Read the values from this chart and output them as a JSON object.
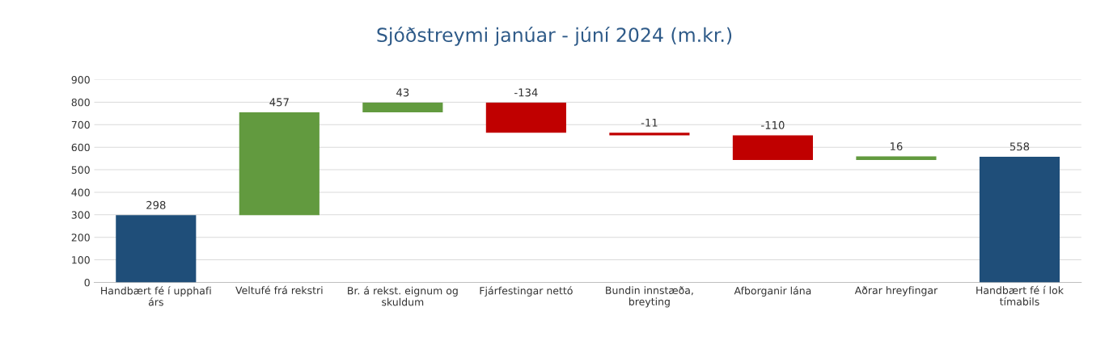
{
  "chart_data": {
    "type": "bar",
    "title": "Sjóðstreymi janúar - júní 2024 (m.kr.)",
    "categories": [
      "Handbært fé í upphafi árs",
      "Veltufé frá rekstri",
      "Br. á rekst. eignum og skuldum",
      "Fjárfestingar nettó",
      "Bundin innstæða, breyting",
      "Afborganir lána",
      "Aðrar hreyfingar",
      "Handbært fé í lok tímabils"
    ],
    "values": [
      298,
      457,
      43,
      -134,
      -11,
      -110,
      16,
      558
    ],
    "base": [
      0,
      298,
      755,
      798,
      664,
      653,
      543,
      0
    ],
    "colors": [
      "#1f4e79",
      "#629a3f",
      "#629a3f",
      "#c00000",
      "#c00000",
      "#c00000",
      "#629a3f",
      "#1f4e79"
    ],
    "data_labels": true,
    "ylim": [
      0,
      900
    ],
    "yticks": [
      0,
      100,
      200,
      300,
      400,
      500,
      600,
      700,
      800,
      900
    ],
    "grid": "y",
    "legend": false
  }
}
